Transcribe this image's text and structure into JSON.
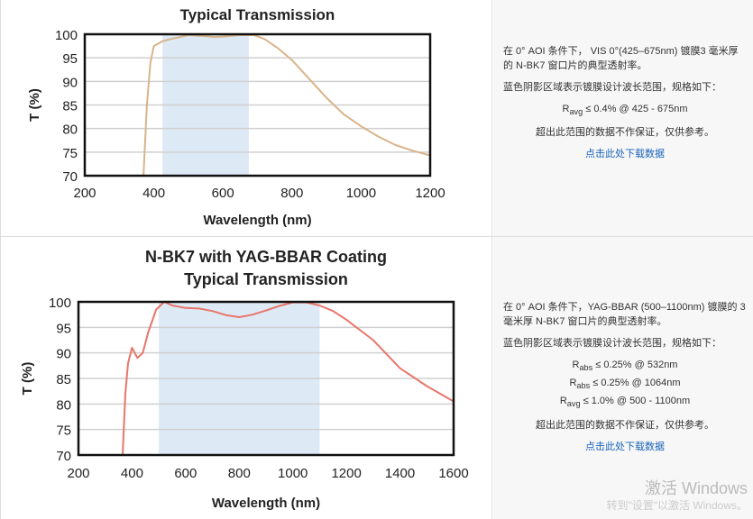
{
  "chart_data": [
    {
      "type": "line",
      "title": "Typical Transmission",
      "xlabel": "Wavelength (nm)",
      "ylabel": "T (%)",
      "xlim": [
        200,
        1200
      ],
      "ylim": [
        70,
        100
      ],
      "xticks": [
        200,
        400,
        600,
        800,
        1000,
        1200
      ],
      "yticks": [
        70,
        75,
        80,
        85,
        90,
        95,
        100
      ],
      "grid": "horizontal",
      "shaded_band": [
        425,
        675
      ],
      "line_color": "#d9b48a",
      "band_color": "#dde9f5",
      "x": [
        370,
        380,
        390,
        400,
        425,
        450,
        500,
        550,
        575,
        600,
        650,
        690,
        720,
        760,
        800,
        850,
        900,
        950,
        1000,
        1050,
        1100,
        1150,
        1200
      ],
      "y": [
        70,
        85,
        94,
        97.5,
        98.5,
        99,
        99.8,
        99.6,
        99.4,
        99.5,
        99.8,
        99.8,
        99,
        97,
        94.5,
        90.5,
        86.5,
        83,
        80.5,
        78.3,
        76.5,
        75.3,
        74.3
      ]
    },
    {
      "type": "line",
      "title": "N-BK7 with YAG-BBAR Coating",
      "subtitle": "Typical Transmission",
      "xlabel": "Wavelength (nm)",
      "ylabel": "T (%)",
      "xlim": [
        200,
        1600
      ],
      "ylim": [
        70,
        100
      ],
      "xticks": [
        200,
        400,
        600,
        800,
        1000,
        1200,
        1400,
        1600
      ],
      "yticks": [
        70,
        75,
        80,
        85,
        90,
        95,
        100
      ],
      "grid": "horizontal",
      "shaded_band": [
        500,
        1100
      ],
      "line_color": "#e8766a",
      "band_color": "#dde9f5",
      "x": [
        365,
        375,
        385,
        400,
        420,
        440,
        460,
        490,
        520,
        550,
        600,
        650,
        700,
        750,
        800,
        850,
        900,
        950,
        1000,
        1050,
        1100,
        1150,
        1200,
        1300,
        1400,
        1500,
        1600
      ],
      "y": [
        70,
        82,
        88,
        91,
        89,
        90,
        94,
        98.5,
        100,
        99.3,
        98.8,
        98.7,
        98.2,
        97.4,
        97,
        97.5,
        98.3,
        99.2,
        99.9,
        99.9,
        99.3,
        98.2,
        96.5,
        92.5,
        87,
        83.5,
        80.5
      ]
    }
  ],
  "panels": [
    {
      "desc1": "在 0° AOI 条件下， VIS 0°(425–675nm) 镀膜3 毫米厚的 N-BK7 窗口片的典型透射率。",
      "desc2": "蓝色阴影区域表示镀膜设计波长范围，规格如下：",
      "specs": [
        {
          "sym": "R",
          "sub": "avg",
          "text": " ≤ 0.4% @ 425 - 675nm"
        }
      ],
      "disclaimer": "超出此范围的数据不作保证，仅供参考。",
      "link": "点击此处下载数据"
    },
    {
      "desc1": "在 0° AOI 条件下，YAG-BBAR (500–1100nm) 镀膜的 3 毫米厚 N-BK7 窗口片的典型透射率。",
      "desc2": "蓝色阴影区域表示镀膜设计波长范围，规格如下：",
      "specs": [
        {
          "sym": "R",
          "sub": "abs",
          "text": " ≤ 0.25% @ 532nm"
        },
        {
          "sym": "R",
          "sub": "abs",
          "text": " ≤ 0.25% @ 1064nm"
        },
        {
          "sym": "R",
          "sub": "avg",
          "text": " ≤ 1.0% @ 500 - 1100nm"
        }
      ],
      "disclaimer": "超出此范围的数据不作保证，仅供参考。",
      "link": "点击此处下载数据"
    }
  ],
  "watermark": {
    "line1": "激活 Windows",
    "line2": "转到\"设置\"以激活 Windows。"
  }
}
